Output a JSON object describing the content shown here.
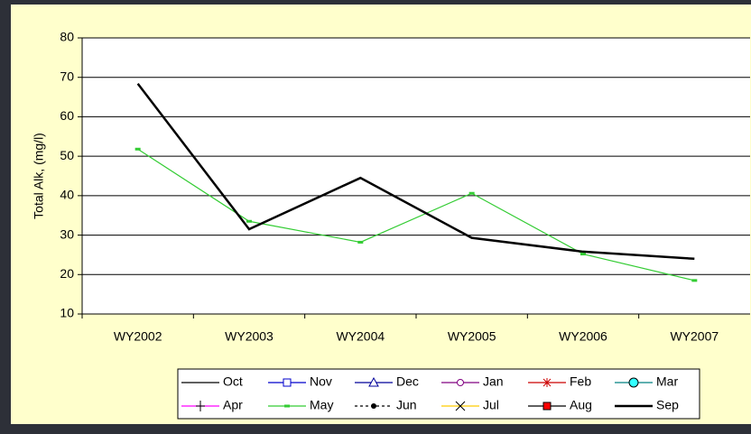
{
  "chart_data": {
    "type": "line",
    "y_label": "Total Alk, (mg/l)",
    "categories": [
      "WY2002",
      "WY2003",
      "WY2004",
      "WY2005",
      "WY2006",
      "WY2007"
    ],
    "ylim": [
      10,
      80
    ],
    "yticks": [
      10,
      20,
      30,
      40,
      50,
      60,
      70,
      80
    ],
    "grid": true,
    "series": [
      {
        "name": "Oct",
        "color": "#000000",
        "marker": "none",
        "values": [
          null,
          null,
          null,
          null,
          null,
          null
        ]
      },
      {
        "name": "Nov",
        "color": "#0000cc",
        "marker": "square",
        "values": [
          null,
          null,
          null,
          null,
          null,
          null
        ]
      },
      {
        "name": "Dec",
        "color": "#000099",
        "marker": "triangle",
        "values": [
          null,
          null,
          null,
          null,
          null,
          null
        ]
      },
      {
        "name": "Jan",
        "color": "#800080",
        "marker": "circle",
        "values": [
          null,
          null,
          null,
          null,
          null,
          null
        ]
      },
      {
        "name": "Feb",
        "color": "#cc0000",
        "marker": "star",
        "values": [
          null,
          null,
          null,
          null,
          null,
          null
        ]
      },
      {
        "name": "Mar",
        "color": "#008080",
        "marker": "cyan-circle",
        "values": [
          null,
          null,
          null,
          null,
          null,
          null
        ]
      },
      {
        "name": "Apr",
        "color": "#ff00ff",
        "marker": "plus",
        "values": [
          null,
          null,
          null,
          null,
          null,
          null
        ]
      },
      {
        "name": "May",
        "color": "#33cc33",
        "marker": "dash",
        "values": [
          51.8,
          33.5,
          28.2,
          40.6,
          25.2,
          18.5
        ]
      },
      {
        "name": "Jun",
        "color": "#000000",
        "marker": "dot",
        "dashed": true,
        "values": [
          null,
          null,
          null,
          null,
          null,
          null
        ]
      },
      {
        "name": "Jul",
        "color": "#ffcc00",
        "marker": "x",
        "values": [
          null,
          null,
          null,
          null,
          null,
          null
        ]
      },
      {
        "name": "Aug",
        "color": "#000000",
        "marker": "red-square",
        "values": [
          null,
          null,
          null,
          null,
          null,
          null
        ]
      },
      {
        "name": "Sep",
        "color": "#000000",
        "marker": "none",
        "thick": true,
        "values": [
          68.4,
          31.5,
          44.5,
          29.3,
          25.8,
          24.0
        ]
      }
    ]
  }
}
